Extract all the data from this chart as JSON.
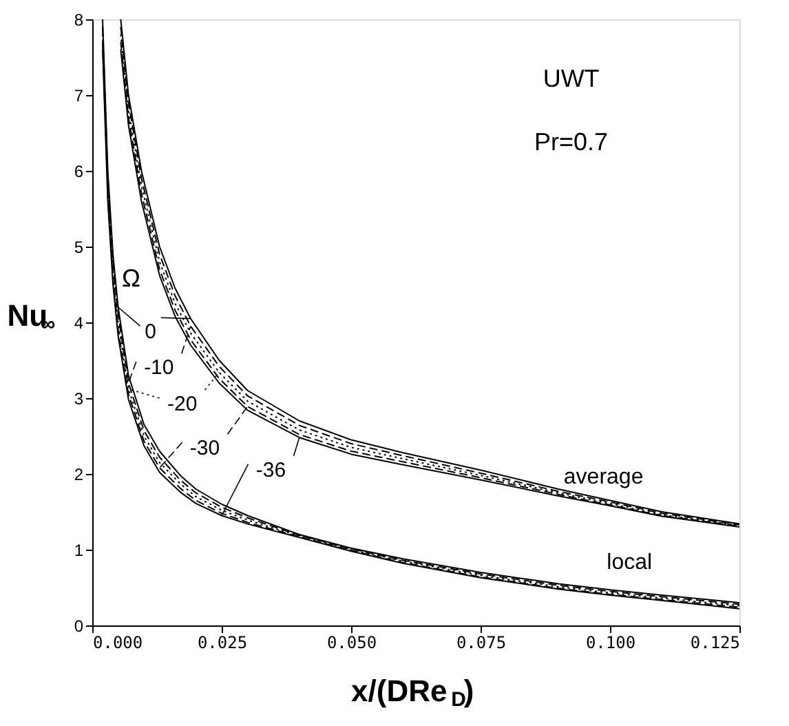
{
  "chart_data": {
    "type": "line",
    "xlabel": "x/(DRe$_{D}$)",
    "ylabel": "Nu$_{∞}$",
    "xlim": [
      0,
      0.125
    ],
    "ylim": [
      0,
      8
    ],
    "xticks": [
      {
        "value": 0,
        "label": "0.000"
      },
      {
        "value": 0.025,
        "label": "0.025"
      },
      {
        "value": 0.05,
        "label": "0.050"
      },
      {
        "value": 0.075,
        "label": "0.075"
      },
      {
        "value": 0.1,
        "label": "0.100"
      },
      {
        "value": 0.125,
        "label": "0.125"
      }
    ],
    "yticks": [
      0,
      1,
      2,
      3,
      4,
      5,
      6,
      7,
      8
    ],
    "grid": false,
    "legend": "left",
    "marker": "none",
    "series": [
      {
        "name": "0",
        "color": "#000000",
        "line_style": "solid",
        "x": [
          0.002,
          0.003,
          0.004,
          0.005,
          0.007,
          0.01,
          0.013,
          0.017,
          0.02,
          0.025,
          0.03,
          0.04,
          0.05,
          0.06,
          0.075,
          0.09,
          0.1,
          0.11,
          0.125
        ],
        "values": [
          8,
          6.0,
          4.9,
          4.2,
          3.3,
          2.65,
          2.3,
          1.98,
          1.8,
          1.6,
          1.45,
          1.2,
          1.02,
          0.88,
          0.7,
          0.55,
          0.47,
          0.4,
          0.3
        ]
      },
      {
        "name": "-10",
        "color": "#000000",
        "line_style": "dashed",
        "x": [
          0.002,
          0.003,
          0.004,
          0.005,
          0.007,
          0.01,
          0.013,
          0.017,
          0.02,
          0.025,
          0.03,
          0.04,
          0.05,
          0.06,
          0.075,
          0.09,
          0.1,
          0.11,
          0.125
        ],
        "values": [
          7.9,
          5.9,
          4.8,
          4.1,
          3.2,
          2.57,
          2.22,
          1.92,
          1.75,
          1.56,
          1.42,
          1.19,
          1.01,
          0.86,
          0.68,
          0.53,
          0.45,
          0.38,
          0.28
        ]
      },
      {
        "name": "-20",
        "color": "#000000",
        "line_style": "dotted",
        "x": [
          0.002,
          0.003,
          0.004,
          0.005,
          0.007,
          0.01,
          0.013,
          0.017,
          0.02,
          0.025,
          0.03,
          0.04,
          0.05,
          0.06,
          0.075,
          0.09,
          0.1,
          0.11,
          0.125
        ],
        "values": [
          7.8,
          5.8,
          4.7,
          4.0,
          3.12,
          2.5,
          2.15,
          1.87,
          1.7,
          1.52,
          1.39,
          1.18,
          1.0,
          0.85,
          0.66,
          0.51,
          0.43,
          0.36,
          0.26
        ]
      },
      {
        "name": "-30",
        "color": "#000000",
        "line_style": "dashed",
        "x": [
          0.002,
          0.003,
          0.004,
          0.005,
          0.007,
          0.01,
          0.013,
          0.017,
          0.02,
          0.025,
          0.03,
          0.04,
          0.05,
          0.06,
          0.075,
          0.09,
          0.1,
          0.11,
          0.125
        ],
        "values": [
          7.7,
          5.7,
          4.6,
          3.9,
          3.05,
          2.43,
          2.08,
          1.81,
          1.65,
          1.48,
          1.36,
          1.17,
          0.99,
          0.83,
          0.64,
          0.49,
          0.41,
          0.34,
          0.24
        ]
      },
      {
        "name": "-36",
        "color": "#000000",
        "line_style": "solid",
        "x": [
          0.002,
          0.003,
          0.004,
          0.005,
          0.007,
          0.01,
          0.013,
          0.017,
          0.02,
          0.025,
          0.03,
          0.04,
          0.05,
          0.06,
          0.075,
          0.09,
          0.1,
          0.11,
          0.125
        ],
        "values": [
          7.6,
          5.6,
          4.5,
          3.82,
          2.98,
          2.37,
          2.02,
          1.76,
          1.61,
          1.45,
          1.34,
          1.16,
          0.98,
          0.82,
          0.63,
          0.48,
          0.4,
          0.33,
          0.22
        ]
      },
      {
        "color": "#000000",
        "line_style": "solid",
        "x": [
          0.0055,
          0.007,
          0.0095,
          0.013,
          0.016,
          0.019,
          0.0245,
          0.03,
          0.04,
          0.05,
          0.06,
          0.075,
          0.09,
          0.1,
          0.11,
          0.125
        ],
        "values": [
          8,
          7,
          6,
          5,
          4.45,
          4.05,
          3.5,
          3.1,
          2.7,
          2.45,
          2.28,
          2.05,
          1.8,
          1.65,
          1.5,
          1.34
        ]
      },
      {
        "color": "#000000",
        "line_style": "dashed",
        "x": [
          0.0055,
          0.007,
          0.0095,
          0.013,
          0.016,
          0.019,
          0.0245,
          0.03,
          0.04,
          0.05,
          0.06,
          0.075,
          0.09,
          0.1,
          0.11,
          0.125
        ],
        "values": [
          7.9,
          6.9,
          5.9,
          4.9,
          4.35,
          3.95,
          3.42,
          3.03,
          2.64,
          2.4,
          2.24,
          2.01,
          1.77,
          1.63,
          1.48,
          1.33
        ]
      },
      {
        "color": "#000000",
        "line_style": "dotted",
        "x": [
          0.0055,
          0.007,
          0.0095,
          0.013,
          0.016,
          0.019,
          0.0245,
          0.03,
          0.04,
          0.05,
          0.06,
          0.075,
          0.09,
          0.1,
          0.11,
          0.125
        ],
        "values": [
          7.8,
          6.8,
          5.8,
          4.8,
          4.25,
          3.86,
          3.34,
          2.96,
          2.58,
          2.35,
          2.2,
          1.98,
          1.75,
          1.61,
          1.46,
          1.32
        ]
      },
      {
        "color": "#000000",
        "line_style": "dashed",
        "x": [
          0.0055,
          0.007,
          0.0095,
          0.013,
          0.016,
          0.019,
          0.0245,
          0.03,
          0.04,
          0.05,
          0.06,
          0.075,
          0.09,
          0.1,
          0.11,
          0.125
        ],
        "values": [
          7.7,
          6.7,
          5.7,
          4.7,
          4.16,
          3.77,
          3.26,
          2.89,
          2.52,
          2.3,
          2.16,
          1.95,
          1.73,
          1.59,
          1.45,
          1.31
        ]
      },
      {
        "color": "#000000",
        "line_style": "solid",
        "x": [
          0.0055,
          0.007,
          0.0095,
          0.013,
          0.016,
          0.019,
          0.0245,
          0.03,
          0.04,
          0.05,
          0.06,
          0.075,
          0.09,
          0.1,
          0.11,
          0.125
        ],
        "values": [
          7.6,
          6.6,
          5.6,
          4.62,
          4.08,
          3.7,
          3.2,
          2.84,
          2.48,
          2.26,
          2.12,
          1.92,
          1.71,
          1.58,
          1.44,
          1.3
        ]
      }
    ],
    "annotations": [
      "UWT",
      "Pr=0.7",
      "Ω",
      "average",
      "local"
    ]
  }
}
